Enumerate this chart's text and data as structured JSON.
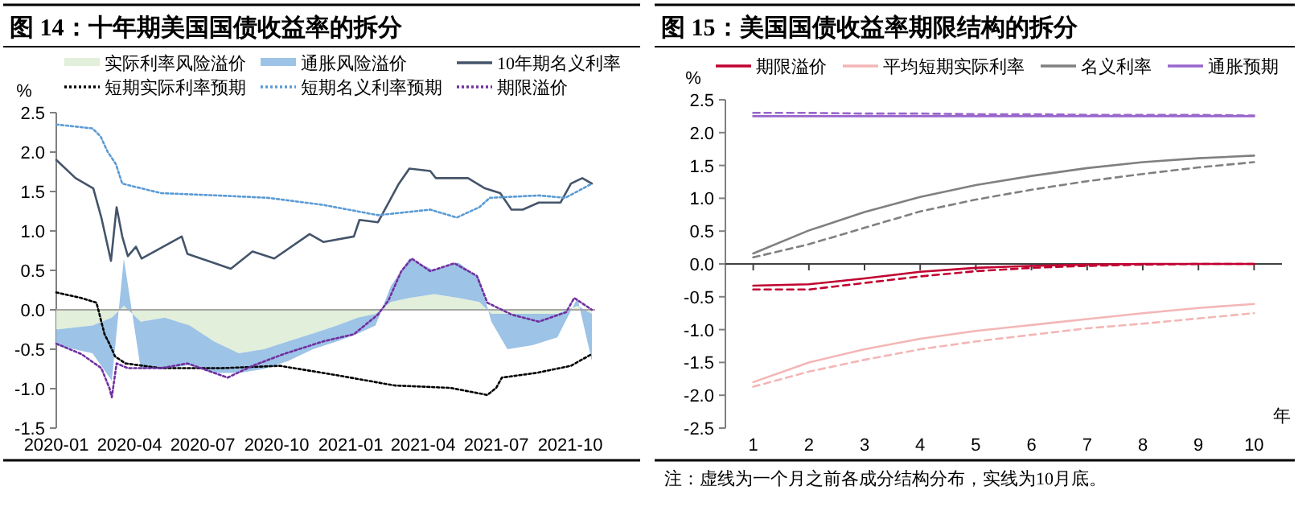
{
  "chart_data": [
    {
      "type": "line",
      "title": "图 14：十年期美国国债收益率的拆分",
      "ylabel": "%",
      "legend": "top",
      "stacked": true,
      "xlim": [
        "2020-01-01",
        "2021-11-01"
      ],
      "xticks": [
        "2020-01",
        "2020-04",
        "2020-07",
        "2020-10",
        "2021-01",
        "2021-04",
        "2021-07",
        "2021-10"
      ],
      "ylim": [
        -1.5,
        2.5
      ],
      "yticks": [
        {
          "value": -1.5,
          "label": "-1.5"
        },
        {
          "value": -1,
          "label": "-1.0"
        },
        -0.5,
        {
          "value": 0,
          "label": "0.0"
        },
        0.5,
        {
          "value": 1,
          "label": "1.0"
        },
        1.5,
        {
          "value": 2,
          "label": "2.0"
        },
        2.5
      ],
      "ref_lines": [
        {
          "axis": "y",
          "value": 0,
          "color": "#a6a6a6"
        }
      ],
      "series": [
        {
          "name": "实际利率风险溢价",
          "type": "area",
          "color": "#e2efda",
          "x": [
            "2020-01-01",
            "2020-02-15",
            "2020-03-10",
            "2020-03-25",
            "2020-04-15",
            "2020-05-15",
            "2020-06-15",
            "2020-07-15",
            "2020-08-15",
            "2020-09-15",
            "2020-10-15",
            "2020-11-15",
            "2020-12-15",
            "2021-01-10",
            "2021-02-01",
            "2021-02-20",
            "2021-03-15",
            "2021-04-15",
            "2021-05-15",
            "2021-06-10",
            "2021-06-25",
            "2021-07-15",
            "2021-08-15",
            "2021-09-15",
            "2021-10-10",
            "2021-10-28"
          ],
          "values": [
            -0.25,
            -0.2,
            -0.1,
            0.05,
            -0.15,
            -0.1,
            -0.2,
            -0.4,
            -0.55,
            -0.5,
            -0.4,
            -0.3,
            -0.2,
            -0.1,
            -0.05,
            0.1,
            0.15,
            0.2,
            0.15,
            0.1,
            -0.05,
            -0.05,
            -0.05,
            -0.05,
            0.05,
            -0.05
          ]
        },
        {
          "name": "通胀风险溢价",
          "type": "area",
          "color": "#9dc3e6",
          "x": [
            "2020-01-01",
            "2020-02-15",
            "2020-03-10",
            "2020-03-25",
            "2020-04-15",
            "2020-05-15",
            "2020-06-15",
            "2020-07-15",
            "2020-08-15",
            "2020-09-15",
            "2020-10-15",
            "2020-11-15",
            "2020-12-15",
            "2021-01-10",
            "2021-02-01",
            "2021-02-20",
            "2021-03-15",
            "2021-04-15",
            "2021-05-15",
            "2021-06-10",
            "2021-06-25",
            "2021-07-15",
            "2021-08-15",
            "2021-09-15",
            "2021-10-10",
            "2021-10-28"
          ],
          "values": [
            -0.2,
            -0.35,
            -0.8,
            0.6,
            -0.6,
            -0.65,
            -0.5,
            -0.4,
            -0.25,
            -0.25,
            -0.25,
            -0.2,
            -0.2,
            -0.2,
            -0.15,
            0.2,
            0.5,
            0.3,
            0.45,
            0.3,
            -0.1,
            -0.45,
            -0.4,
            -0.3,
            0.1,
            -0.6
          ]
        },
        {
          "name": "10年期名义利率",
          "type": "line",
          "line_style": "solid",
          "color": "#44546a",
          "x": [
            "2020-01-01",
            "2020-01-25",
            "2020-02-16",
            "2020-02-26",
            "2020-03-09",
            "2020-03-14",
            "2020-03-16",
            "2020-03-23",
            "2020-03-30",
            "2020-04-09",
            "2020-04-16",
            "2020-06-05",
            "2020-06-12",
            "2020-08-05",
            "2020-09-01",
            "2020-09-28",
            "2020-11-11",
            "2020-11-28",
            "2021-01-05",
            "2021-01-12",
            "2021-02-04",
            "2021-03-02",
            "2021-03-15",
            "2021-04-10",
            "2021-04-17",
            "2021-05-27",
            "2021-06-17",
            "2021-07-06",
            "2021-07-20",
            "2021-08-03",
            "2021-08-23",
            "2021-09-19",
            "2021-10-02",
            "2021-10-16",
            "2021-10-28"
          ],
          "values": [
            1.9,
            1.67,
            1.54,
            1.17,
            0.62,
            1.11,
            1.3,
            0.93,
            0.68,
            0.8,
            0.65,
            0.93,
            0.71,
            0.52,
            0.74,
            0.65,
            0.96,
            0.86,
            0.93,
            1.14,
            1.11,
            1.6,
            1.79,
            1.76,
            1.67,
            1.67,
            1.54,
            1.48,
            1.27,
            1.27,
            1.36,
            1.36,
            1.6,
            1.67,
            1.6
          ]
        },
        {
          "name": "短期实际利率预期",
          "type": "line",
          "line_style": "dotted",
          "color": "#000000",
          "x": [
            "2020-01-01",
            "2020-02-01",
            "2020-02-20",
            "2020-03-01",
            "2020-03-07",
            "2020-03-14",
            "2020-03-27",
            "2020-05-10",
            "2020-07-25",
            "2020-10-05",
            "2020-12-15",
            "2021-02-25",
            "2021-05-05",
            "2021-06-20",
            "2021-07-01",
            "2021-07-08",
            "2021-08-20",
            "2021-10-02",
            "2021-10-28"
          ],
          "values": [
            0.22,
            0.15,
            0.09,
            -0.31,
            -0.43,
            -0.59,
            -0.68,
            -0.74,
            -0.74,
            -0.71,
            -0.83,
            -0.96,
            -0.99,
            -1.08,
            -0.99,
            -0.86,
            -0.8,
            -0.71,
            -0.56
          ]
        },
        {
          "name": "短期名义利率预期",
          "type": "line",
          "line_style": "dotted",
          "color": "#5b9bd5",
          "x": [
            "2020-01-01",
            "2020-02-15",
            "2020-02-25",
            "2020-03-05",
            "2020-03-15",
            "2020-03-23",
            "2020-05-10",
            "2020-07-20",
            "2020-09-20",
            "2020-11-28",
            "2021-02-04",
            "2021-04-10",
            "2021-05-13",
            "2021-06-10",
            "2021-06-23",
            "2021-08-23",
            "2021-09-25",
            "2021-10-28"
          ],
          "values": [
            2.35,
            2.3,
            2.2,
            2.0,
            1.85,
            1.6,
            1.48,
            1.45,
            1.42,
            1.33,
            1.2,
            1.27,
            1.17,
            1.3,
            1.42,
            1.45,
            1.42,
            1.6
          ]
        },
        {
          "name": "期限溢价",
          "type": "line",
          "line_style": "dotted",
          "color": "#7030a0",
          "x": [
            "2020-01-01",
            "2020-02-01",
            "2020-02-26",
            "2020-03-07",
            "2020-03-10",
            "2020-03-16",
            "2020-03-30",
            "2020-05-10",
            "2020-06-12",
            "2020-08-01",
            "2020-09-01",
            "2020-10-10",
            "2020-11-28",
            "2021-01-05",
            "2021-02-04",
            "2021-02-17",
            "2021-03-05",
            "2021-03-18",
            "2021-04-10",
            "2021-05-10",
            "2021-06-07",
            "2021-06-20",
            "2021-07-20",
            "2021-08-23",
            "2021-09-26",
            "2021-10-06",
            "2021-10-28"
          ],
          "values": [
            -0.43,
            -0.56,
            -0.74,
            -0.99,
            -1.11,
            -0.68,
            -0.74,
            -0.74,
            -0.68,
            -0.86,
            -0.71,
            -0.56,
            -0.4,
            -0.31,
            -0.06,
            0.12,
            0.49,
            0.65,
            0.49,
            0.59,
            0.43,
            0.09,
            -0.06,
            -0.15,
            -0.03,
            0.15,
            0.0
          ]
        }
      ]
    },
    {
      "type": "line",
      "title": "图 15：美国国债收益率期限结构的拆分",
      "ylabel": "%",
      "xlabel": "年",
      "legend": "top",
      "x": [
        1,
        2,
        3,
        4,
        5,
        6,
        7,
        8,
        9,
        10
      ],
      "xlim": [
        0.5,
        10.5
      ],
      "xticks": [
        1,
        2,
        3,
        4,
        5,
        6,
        7,
        8,
        9,
        10
      ],
      "ylim": [
        -2.5,
        2.5
      ],
      "yticks": [
        -2.5,
        {
          "value": -2,
          "label": "-2.0"
        },
        -1.5,
        {
          "value": -1,
          "label": "-1.0"
        },
        -0.5,
        {
          "value": 0,
          "label": "0.0"
        },
        0.5,
        {
          "value": 1,
          "label": "1.0"
        },
        1.5,
        {
          "value": 2,
          "label": "2.0"
        },
        2.5
      ],
      "ref_lines": [
        {
          "axis": "y",
          "value": 0,
          "color": "#404040"
        }
      ],
      "annotations": [
        "注：虚线为一个月之前各成分结构分布，实线为10月底。"
      ],
      "series": [
        {
          "name": "期限溢价",
          "line_style": "solid",
          "color": "#c00030",
          "values": [
            -0.33,
            -0.31,
            -0.22,
            -0.12,
            -0.06,
            -0.03,
            -0.01,
            0.0,
            0.0,
            0.0
          ]
        },
        {
          "line_style": "dashed",
          "color": "#c00030",
          "values": [
            -0.39,
            -0.39,
            -0.29,
            -0.19,
            -0.11,
            -0.06,
            -0.03,
            -0.01,
            0.0,
            0.0
          ]
        },
        {
          "name": "平均短期实际利率",
          "line_style": "solid",
          "color": "#f4b6b6",
          "values": [
            -1.8,
            -1.5,
            -1.3,
            -1.14,
            -1.02,
            -0.93,
            -0.84,
            -0.75,
            -0.67,
            -0.61
          ]
        },
        {
          "line_style": "dashed",
          "color": "#f4b6b6",
          "values": [
            -1.87,
            -1.64,
            -1.46,
            -1.3,
            -1.18,
            -1.08,
            -0.98,
            -0.91,
            -0.83,
            -0.75
          ]
        },
        {
          "name": "名义利率",
          "line_style": "solid",
          "color": "#808080",
          "values": [
            0.16,
            0.51,
            0.79,
            1.02,
            1.2,
            1.34,
            1.46,
            1.55,
            1.61,
            1.65
          ]
        },
        {
          "line_style": "dashed",
          "color": "#808080",
          "values": [
            0.1,
            0.3,
            0.55,
            0.8,
            0.98,
            1.13,
            1.26,
            1.37,
            1.47,
            1.55
          ]
        },
        {
          "name": "通胀预期",
          "line_style": "solid",
          "color": "#9966cc",
          "values": [
            2.25,
            2.25,
            2.25,
            2.25,
            2.25,
            2.25,
            2.25,
            2.25,
            2.25,
            2.25
          ]
        },
        {
          "line_style": "dashed",
          "color": "#9966cc",
          "values": [
            2.3,
            2.3,
            2.29,
            2.29,
            2.28,
            2.28,
            2.27,
            2.27,
            2.27,
            2.26
          ]
        }
      ]
    }
  ]
}
